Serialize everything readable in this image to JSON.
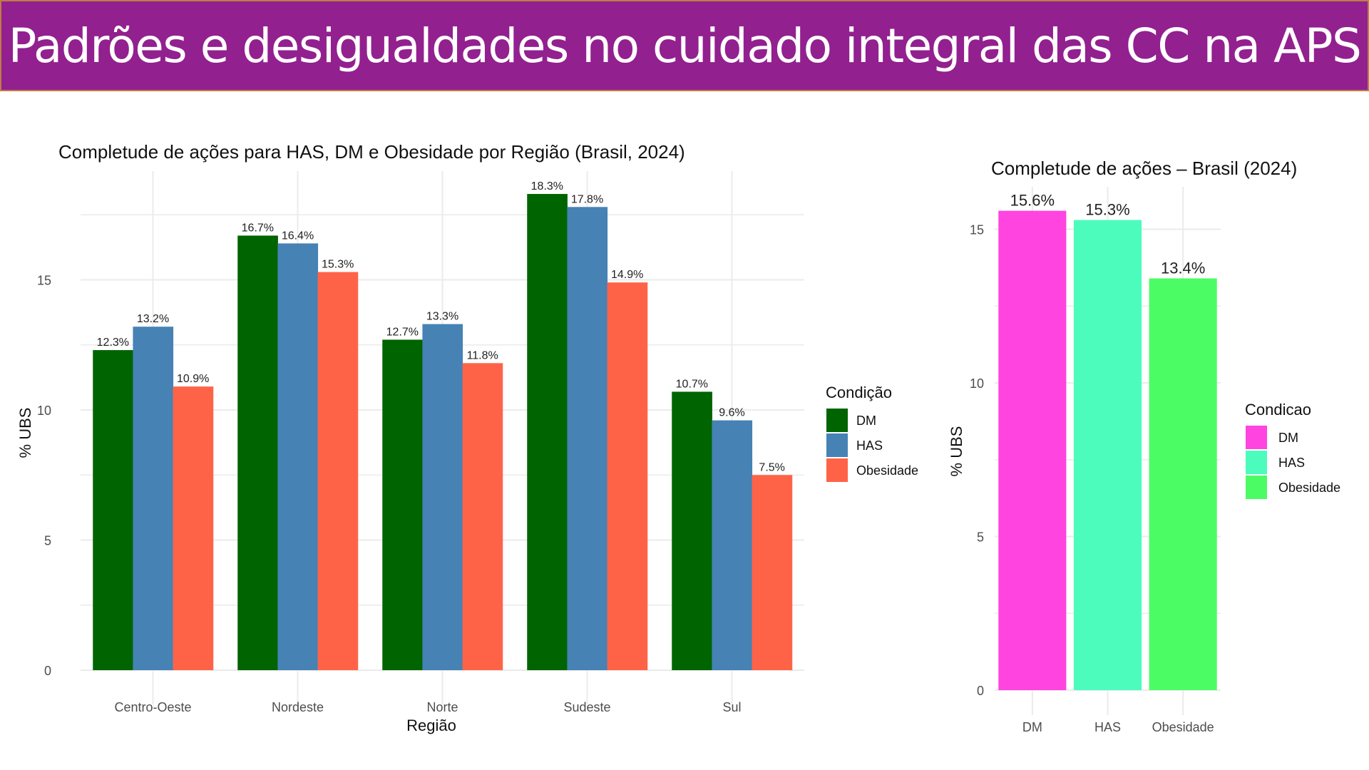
{
  "header": {
    "title": "Padrões e desigualdades no cuidado integral das CC na APS",
    "background_color": "#92208f"
  },
  "chart_data": [
    {
      "type": "bar",
      "title": "Completude de ações para HAS, DM e Obesidade por Região (Brasil, 2024)",
      "xlabel": "Região",
      "ylabel": "% UBS",
      "categories": [
        "Centro-Oeste",
        "Nordeste",
        "Norte",
        "Sudeste",
        "Sul"
      ],
      "series": [
        {
          "name": "DM",
          "color": "#006400",
          "values": [
            12.3,
            16.7,
            12.7,
            18.3,
            10.7
          ],
          "labels": [
            "12.3%",
            "16.7%",
            "12.7%",
            "18.3%",
            "10.7%"
          ]
        },
        {
          "name": "HAS",
          "color": "#4682b4",
          "values": [
            13.2,
            16.4,
            13.3,
            17.8,
            9.6
          ],
          "labels": [
            "13.2%",
            "16.4%",
            "13.3%",
            "17.8%",
            "9.6%"
          ]
        },
        {
          "name": "Obesidade",
          "color": "#ff6347",
          "values": [
            10.9,
            15.3,
            11.8,
            14.9,
            7.5
          ],
          "labels": [
            "10.9%",
            "15.3%",
            "11.8%",
            "14.9%",
            "7.5%"
          ]
        }
      ],
      "yticks": [
        0,
        5,
        10,
        15
      ],
      "ylim": [
        0,
        19.2
      ],
      "grid": true,
      "legend": {
        "title": "Condição",
        "position": "right"
      }
    },
    {
      "type": "bar",
      "title": "Completude de ações – Brasil (2024)",
      "xlabel": "",
      "ylabel": "% UBS",
      "categories": [
        "DM",
        "HAS",
        "Obesidade"
      ],
      "values": [
        15.6,
        15.3,
        13.4
      ],
      "labels": [
        "15.6%",
        "15.3%",
        "13.4%"
      ],
      "colors": [
        "#ff44e0",
        "#4cfcbc",
        "#4cfc64"
      ],
      "yticks": [
        0,
        5,
        10,
        15
      ],
      "ylim": [
        0,
        16.3
      ],
      "grid": true,
      "legend": {
        "title": "Condicao",
        "position": "right",
        "entries": [
          "DM",
          "HAS",
          "Obesidade"
        ]
      }
    }
  ]
}
